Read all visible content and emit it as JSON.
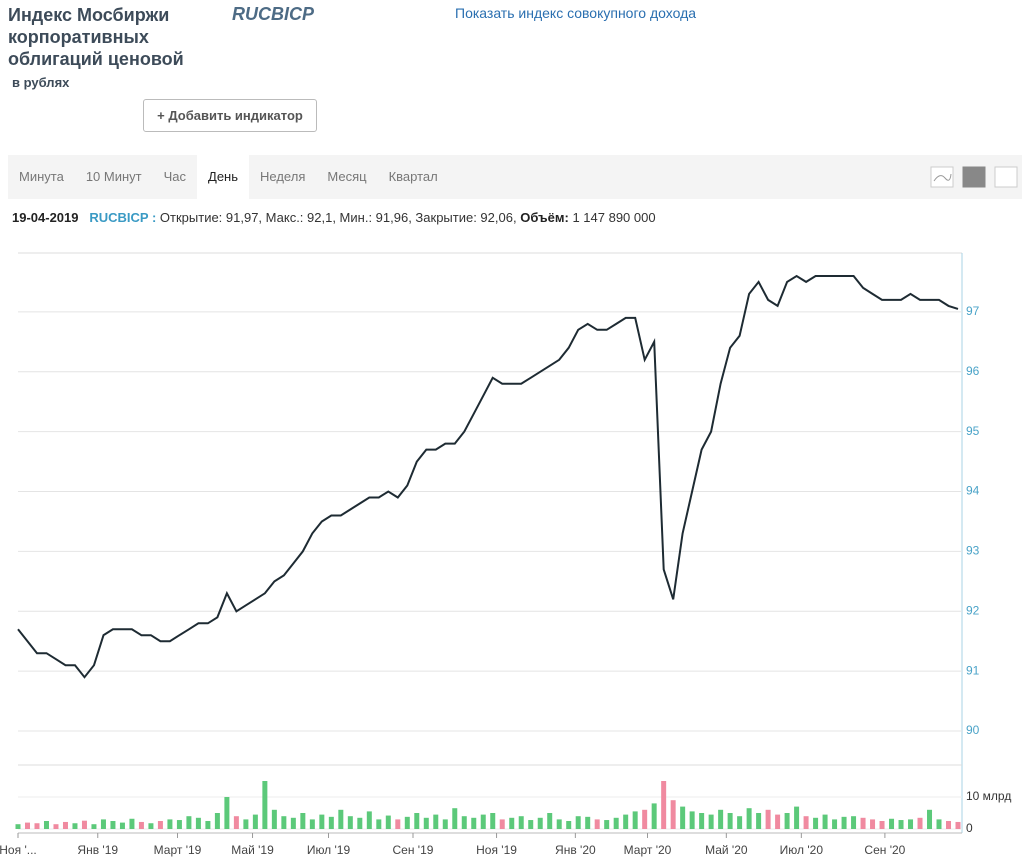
{
  "header": {
    "title": "Индекс Мосбиржи корпоративных облигаций ценовой",
    "subtitle": "в рублях",
    "ticker": "RUCBICP",
    "link": "Показать индекс совокупного дохода",
    "button": "+ Добавить индикатор"
  },
  "tabs": [
    "Минута",
    "10 Минут",
    "Час",
    "День",
    "Неделя",
    "Месяц",
    "Квартал"
  ],
  "active_tab": 3,
  "info": {
    "date": "19-04-2019",
    "ticker": "RUCBICP :",
    "ohlc": "Открытие: 91,97, Макс.: 92,1, Мин.: 91,96, Закрытие: 92,06,",
    "volume_label": "Объём:",
    "volume": "1 147 890 000"
  },
  "chart_data": [
    {
      "type": "line",
      "color": "#1e2b33",
      "grid": true,
      "xlim": [
        0,
        99
      ],
      "ylim": [
        89.5,
        98
      ],
      "yticks": [
        90,
        91,
        92,
        93,
        94,
        95,
        96,
        97
      ],
      "xticks": [
        {
          "value": 0,
          "label": "Ноя '..."
        },
        {
          "value": 8.4,
          "label": "Янв '19"
        },
        {
          "value": 16.8,
          "label": "Март '19"
        },
        {
          "value": 24.7,
          "label": "Май '19"
        },
        {
          "value": 32.7,
          "label": "Июл '19"
        },
        {
          "value": 41.6,
          "label": "Сен '19"
        },
        {
          "value": 50.4,
          "label": "Ноя '19"
        },
        {
          "value": 58.7,
          "label": "Янв '20"
        },
        {
          "value": 66.3,
          "label": "Март '20"
        },
        {
          "value": 74.6,
          "label": "Май '20"
        },
        {
          "value": 82.5,
          "label": "Июл '20"
        },
        {
          "value": 91.3,
          "label": "Сен '20"
        }
      ],
      "values": [
        91.7,
        91.5,
        91.3,
        91.3,
        91.2,
        91.1,
        91.1,
        90.9,
        91.1,
        91.6,
        91.7,
        91.7,
        91.7,
        91.6,
        91.6,
        91.5,
        91.5,
        91.6,
        91.7,
        91.8,
        91.8,
        91.9,
        92.3,
        92.0,
        92.1,
        92.2,
        92.3,
        92.5,
        92.6,
        92.8,
        93.0,
        93.3,
        93.5,
        93.6,
        93.6,
        93.7,
        93.8,
        93.9,
        93.9,
        94.0,
        93.9,
        94.1,
        94.5,
        94.7,
        94.7,
        94.8,
        94.8,
        95.0,
        95.3,
        95.6,
        95.9,
        95.8,
        95.8,
        95.8,
        95.9,
        96.0,
        96.1,
        96.2,
        96.4,
        96.7,
        96.8,
        96.7,
        96.7,
        96.8,
        96.9,
        96.9,
        96.2,
        96.5,
        92.7,
        92.2,
        93.3,
        94.0,
        94.7,
        95.0,
        95.8,
        96.4,
        96.6,
        97.3,
        97.5,
        97.2,
        97.1,
        97.5,
        97.6,
        97.5,
        97.6,
        97.6,
        97.6,
        97.6,
        97.6,
        97.4,
        97.3,
        97.2,
        97.2,
        97.2,
        97.3,
        97.2,
        97.2,
        97.2,
        97.1,
        97.05
      ]
    },
    {
      "type": "bar",
      "up_color": "#5cc97a",
      "down_color": "#f08aa0",
      "xlim": [
        0,
        99
      ],
      "ylim": [
        0,
        20000000000
      ],
      "yticks": [
        0,
        {
          "value": 10000000000,
          "label": "10 млрд"
        }
      ],
      "values": [
        1500000000,
        2000000000,
        1800000000,
        2500000000,
        1500000000,
        2200000000,
        1800000000,
        2600000000,
        1500000000,
        3000000000,
        2500000000,
        2000000000,
        3200000000,
        2200000000,
        1800000000,
        2500000000,
        3000000000,
        2800000000,
        4000000000,
        3500000000,
        2500000000,
        5000000000,
        10000000000,
        4000000000,
        3000000000,
        4500000000,
        15000000000,
        6000000000,
        4000000000,
        3500000000,
        5000000000,
        3000000000,
        4500000000,
        3800000000,
        6000000000,
        4000000000,
        3500000000,
        5500000000,
        3000000000,
        4200000000,
        3000000000,
        3800000000,
        5000000000,
        3500000000,
        4500000000,
        3000000000,
        6500000000,
        4000000000,
        3500000000,
        4500000000,
        5000000000,
        3000000000,
        3500000000,
        4000000000,
        2800000000,
        3500000000,
        5000000000,
        3000000000,
        2500000000,
        4000000000,
        3800000000,
        3000000000,
        2800000000,
        3500000000,
        4500000000,
        5500000000,
        6000000000,
        8000000000,
        15000000000,
        9000000000,
        7000000000,
        5500000000,
        5000000000,
        4500000000,
        6000000000,
        5000000000,
        4000000000,
        6500000000,
        5000000000,
        6000000000,
        4500000000,
        5000000000,
        7000000000,
        4000000000,
        3500000000,
        4500000000,
        3000000000,
        3800000000,
        4000000000,
        3500000000,
        3000000000,
        2500000000,
        3200000000,
        2800000000,
        3000000000,
        3500000000,
        6000000000,
        3000000000,
        2500000000,
        2200000000
      ]
    }
  ]
}
